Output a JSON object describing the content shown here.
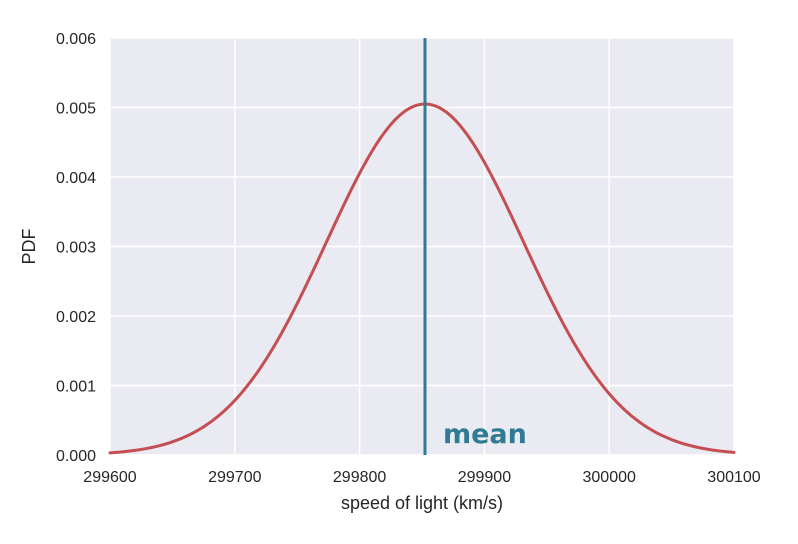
{
  "chart_data": {
    "type": "line",
    "title": "",
    "xlabel": "speed of light (km/s)",
    "ylabel": "PDF",
    "xlim": [
      299600,
      300100
    ],
    "ylim": [
      0,
      0.006
    ],
    "xticks": [
      299600,
      299700,
      299800,
      299900,
      300000,
      300100
    ],
    "xtick_labels": [
      "299600",
      "299700",
      "299800",
      "299900",
      "300000",
      "300100"
    ],
    "yticks": [
      0,
      0.001,
      0.002,
      0.003,
      0.004,
      0.005,
      0.006
    ],
    "ytick_labels": [
      "0.000",
      "0.001",
      "0.002",
      "0.003",
      "0.004",
      "0.005",
      "0.006"
    ],
    "grid": true,
    "series": [
      {
        "distribution": "normal",
        "mean": 299852.4,
        "std": 79,
        "peak": 0.00505,
        "x": [
          299600,
          299650,
          299700,
          299750,
          299800,
          299825,
          299852.4,
          299875,
          299900,
          299950,
          300000,
          300050,
          300100
        ],
        "y": [
          3e-05,
          0.00021,
          0.00079,
          0.00218,
          0.00406,
          0.00477,
          0.00505,
          0.00484,
          0.00423,
          0.00236,
          0.00088,
          0.00022,
          4e-05
        ],
        "color": "#c44e52"
      }
    ],
    "annotations": [
      {
        "type": "vline",
        "x": 299852.4,
        "label": "mean",
        "color": "#2f7b94"
      }
    ],
    "colors": {
      "plot_background": "#eaeaf2",
      "grid": "#ffffff",
      "text": "#262626"
    }
  }
}
